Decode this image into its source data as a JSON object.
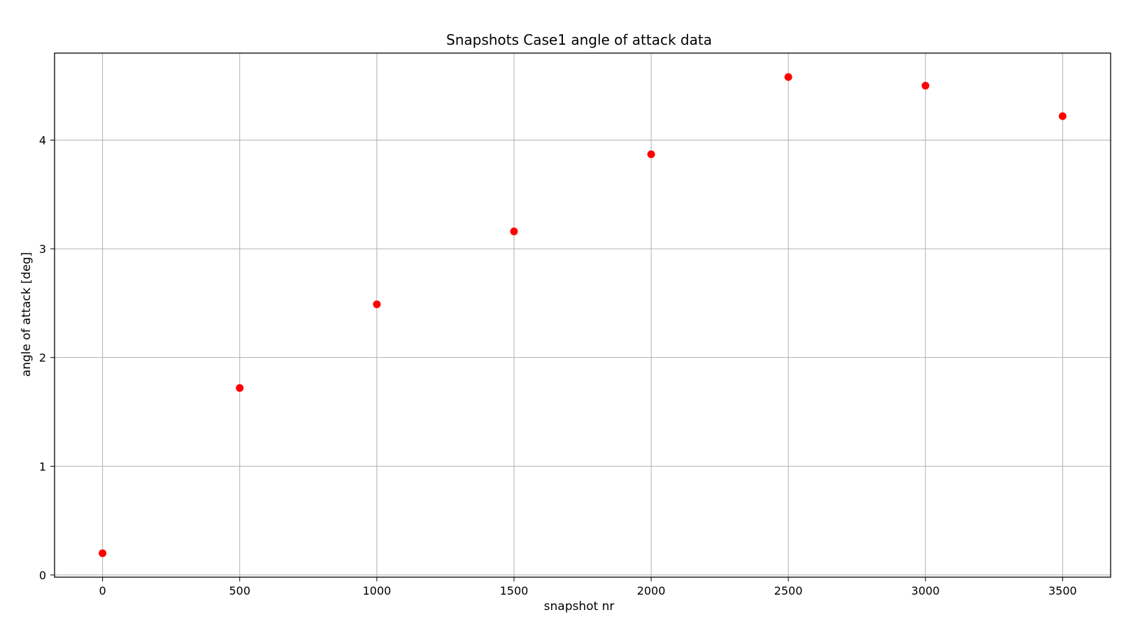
{
  "chart_data": {
    "type": "scatter",
    "title": "Snapshots Case1 angle of attack data",
    "xlabel": "snapshot nr",
    "ylabel": "angle of attack [deg]",
    "x": [
      0,
      500,
      1000,
      1500,
      2000,
      2500,
      3000,
      3500
    ],
    "y": [
      0.2,
      1.72,
      2.49,
      3.16,
      3.87,
      4.58,
      4.5,
      4.22
    ],
    "xlim": [
      -175,
      3675
    ],
    "ylim": [
      -0.02,
      4.8
    ],
    "xticks": [
      0,
      500,
      1000,
      1500,
      2000,
      2500,
      3000,
      3500
    ],
    "xtick_labels": [
      "0",
      "500",
      "1000",
      "1500",
      "2000",
      "2500",
      "3000",
      "3500"
    ],
    "yticks": [
      0,
      1,
      2,
      3,
      4
    ],
    "ytick_labels": [
      "0",
      "1",
      "2",
      "3",
      "4"
    ],
    "grid": true,
    "marker_color": "#ff0000",
    "grid_color": "#b0b0b0"
  }
}
